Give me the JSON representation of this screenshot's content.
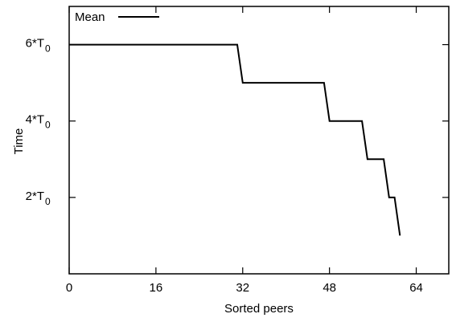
{
  "chart_data": {
    "type": "line",
    "xlabel": "Sorted peers",
    "ylabel": "Time",
    "xlim": [
      0,
      70
    ],
    "ylim": [
      0,
      7
    ],
    "x_ticks": [
      {
        "value": 0,
        "label": "0"
      },
      {
        "value": 16,
        "label": "16"
      },
      {
        "value": 32,
        "label": "32"
      },
      {
        "value": 48,
        "label": "48"
      },
      {
        "value": 64,
        "label": "64"
      }
    ],
    "y_ticks": [
      {
        "value": 2,
        "label": "2*T",
        "sub": "0"
      },
      {
        "value": 4,
        "label": "4*T",
        "sub": "0"
      },
      {
        "value": 6,
        "label": "6*T",
        "sub": "0"
      }
    ],
    "grid": false,
    "legend": {
      "position": "top-left"
    },
    "series": [
      {
        "name": "Mean",
        "color": "#000000",
        "points": [
          [
            0,
            6
          ],
          [
            31,
            6
          ],
          [
            32,
            5
          ],
          [
            47,
            5
          ],
          [
            48,
            4
          ],
          [
            54,
            4
          ],
          [
            55,
            3
          ],
          [
            58,
            3
          ],
          [
            59,
            2
          ],
          [
            60,
            2
          ],
          [
            61,
            1
          ]
        ]
      }
    ]
  }
}
